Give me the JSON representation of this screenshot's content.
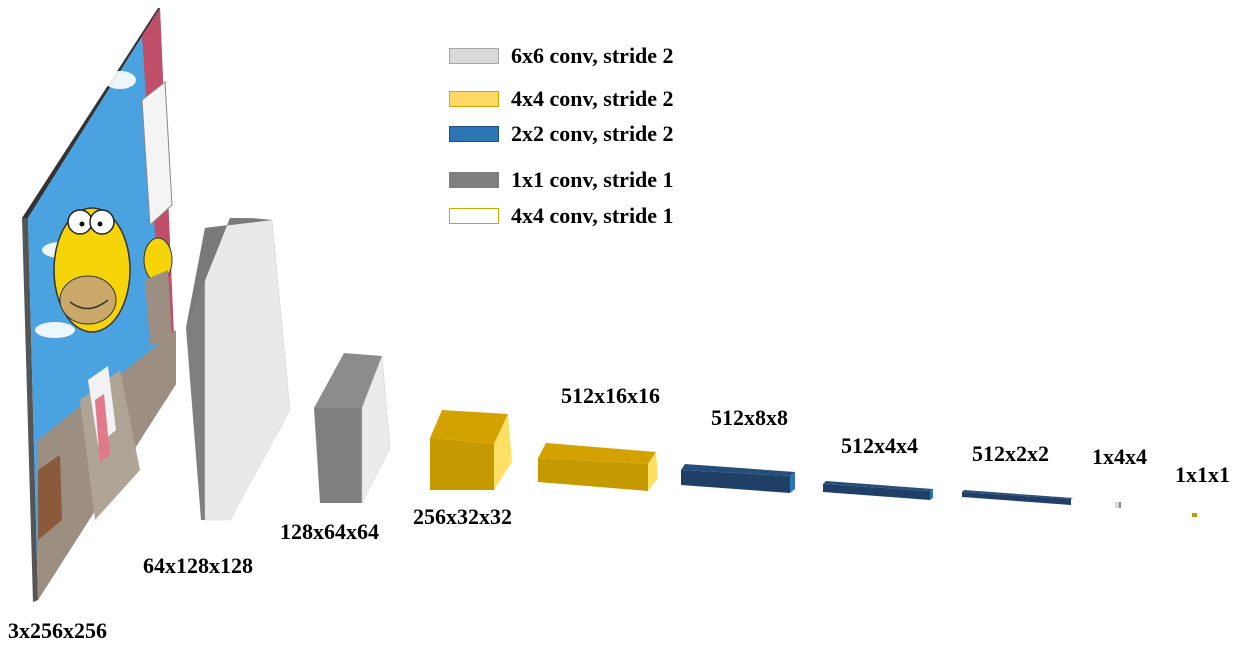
{
  "legend": [
    {
      "label": "6x6 conv, stride 2",
      "fill": "#d9d9d9",
      "border": "#a6a6a6"
    },
    {
      "label": "4x4 conv, stride 2",
      "fill": "#ffd966",
      "border": "#d6a600"
    },
    {
      "label": "2x2 conv, stride 2",
      "fill": "#2e75b6",
      "border": "#1f4e79"
    },
    {
      "label": "1x1 conv, stride 1",
      "fill": "#7f7f7f",
      "border": "#7f7f7f"
    },
    {
      "label": "4x4 conv, stride 1",
      "fill": "#ffffff",
      "border": "#d6a600"
    }
  ],
  "layers": [
    {
      "label": "3x256x256",
      "kind": "input-image"
    },
    {
      "label": "64x128x128",
      "kind": "block-gray-light"
    },
    {
      "label": "128x64x64",
      "kind": "block-gray-light"
    },
    {
      "label": "256x32x32",
      "kind": "block-yellow"
    },
    {
      "label": "512x16x16",
      "kind": "block-yellow"
    },
    {
      "label": "512x8x8",
      "kind": "block-blue"
    },
    {
      "label": "512x4x4",
      "kind": "block-blue"
    },
    {
      "label": "512x2x2",
      "kind": "block-blue"
    },
    {
      "label": "1x4x4",
      "kind": "block-gray-tiny"
    },
    {
      "label": "1x1x1",
      "kind": "block-yellow-tiny"
    }
  ],
  "colors": {
    "gray_dark": "#7f7f7f",
    "gray_light": "#e8e8e8",
    "yellow_front": "#c49a00",
    "yellow_top": "#d4a200",
    "yellow_side": "#ffe066",
    "blue_front": "#1f3f66",
    "blue_side": "#2e75b6",
    "sky": "#4aa3e0",
    "simpson_yellow": "#f5d40a"
  }
}
